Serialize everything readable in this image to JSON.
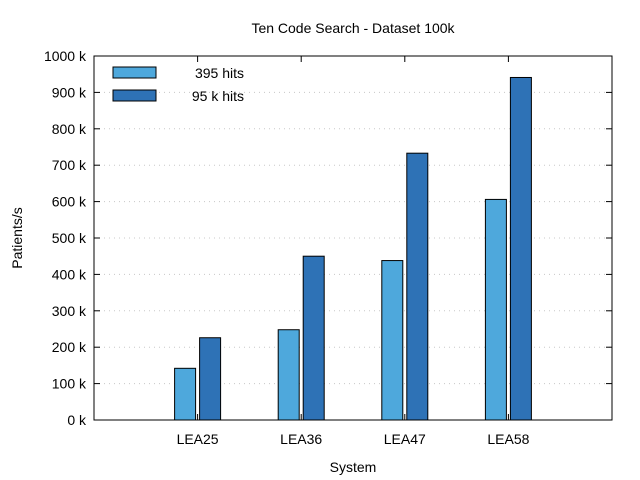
{
  "chart_data": {
    "type": "bar",
    "title": "Ten Code Search - Dataset 100k",
    "xlabel": "System",
    "ylabel": "Patients/s",
    "categories": [
      "LEA25",
      "LEA36",
      "LEA47",
      "LEA58"
    ],
    "series": [
      {
        "name": "395 hits",
        "values": [
          142000,
          248000,
          438000,
          606000
        ],
        "color": "#4ea8dc"
      },
      {
        "name": "95 k hits",
        "values": [
          226000,
          450000,
          733000,
          941000
        ],
        "color": "#2e72b6"
      }
    ],
    "ylim": [
      0,
      1000000
    ],
    "yticks": [
      0,
      100000,
      200000,
      300000,
      400000,
      500000,
      600000,
      700000,
      800000,
      900000,
      1000000
    ],
    "ytick_labels": [
      "0 k",
      "100 k",
      "200 k",
      "300 k",
      "400 k",
      "500 k",
      "600 k",
      "700 k",
      "800 k",
      "900 k",
      "1000 k"
    ],
    "grid": true,
    "legend_position": "top-left"
  }
}
